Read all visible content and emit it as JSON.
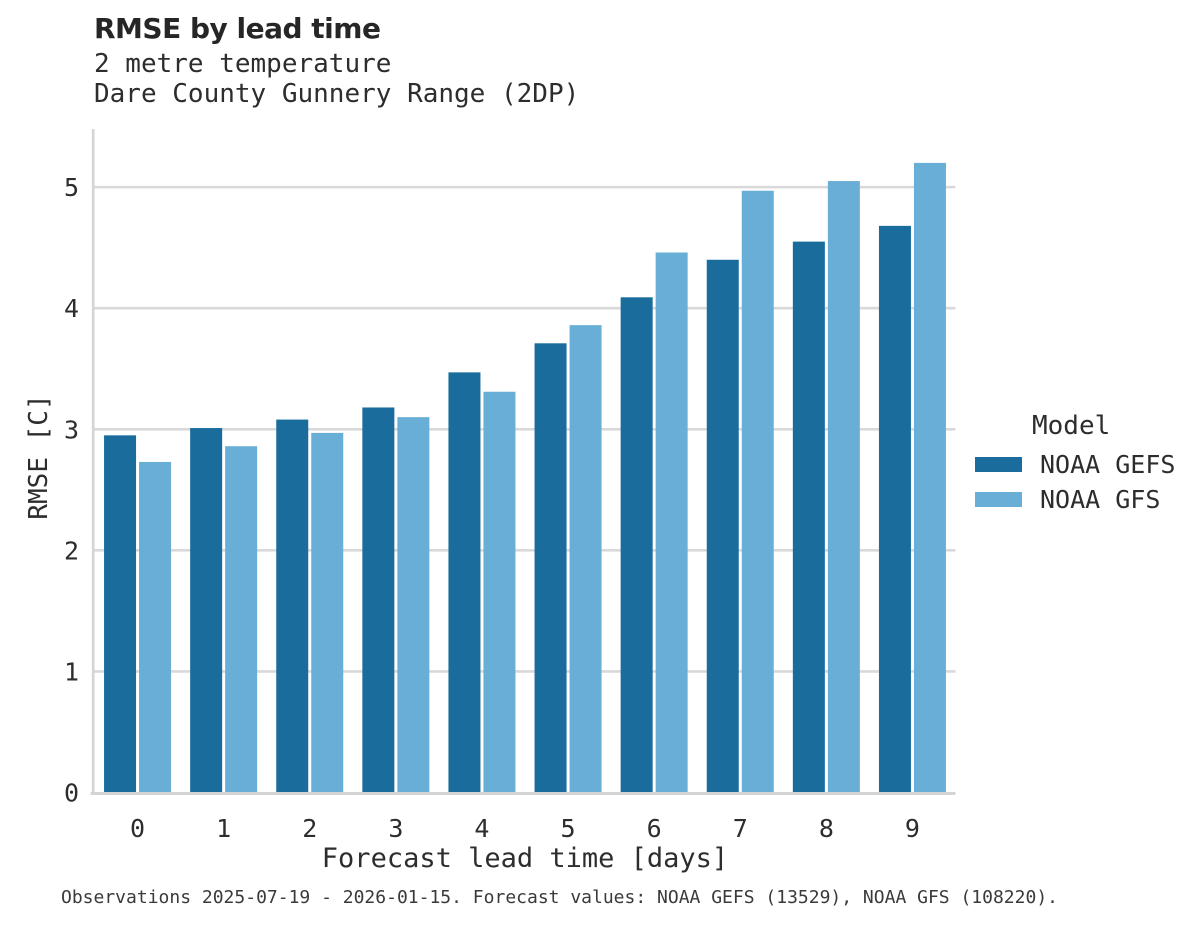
{
  "header": {
    "title": "RMSE by lead time",
    "subtitle_line1": "2 metre temperature",
    "subtitle_line2": "Dare County Gunnery Range (2DP)"
  },
  "legend": {
    "title": "Model",
    "entries": [
      {
        "label": "NOAA GEFS",
        "color": "#196c9c"
      },
      {
        "label": "NOAA GFS",
        "color": "#69aed6"
      }
    ]
  },
  "footer": {
    "text": "Observations 2025-07-19 - 2026-01-15. Forecast values: NOAA GEFS (13529), NOAA GFS (108220)."
  },
  "chart_data": {
    "type": "bar",
    "title": "RMSE by lead time",
    "subtitle": [
      "2 metre temperature",
      "Dare County Gunnery Range (2DP)"
    ],
    "xlabel": "Forecast lead time [days]",
    "ylabel": "RMSE [C]",
    "categories": [
      "0",
      "1",
      "2",
      "3",
      "4",
      "5",
      "6",
      "7",
      "8",
      "9"
    ],
    "series": [
      {
        "name": "NOAA GEFS",
        "color": "#196c9c",
        "values": [
          2.95,
          3.01,
          3.08,
          3.18,
          3.47,
          3.71,
          4.09,
          4.4,
          4.55,
          4.68
        ]
      },
      {
        "name": "NOAA GFS",
        "color": "#69aed6",
        "values": [
          2.73,
          2.86,
          2.97,
          3.1,
          3.31,
          3.86,
          4.46,
          4.97,
          5.05,
          5.2
        ]
      }
    ],
    "yticks": [
      0,
      1,
      2,
      3,
      4,
      5
    ],
    "ylim": [
      0,
      5.48
    ],
    "grid": "horizontal",
    "grid_color": "#d9d9d9",
    "axis_color": "#d4d4d4",
    "legend_position": "right",
    "legend_title": "Model"
  }
}
